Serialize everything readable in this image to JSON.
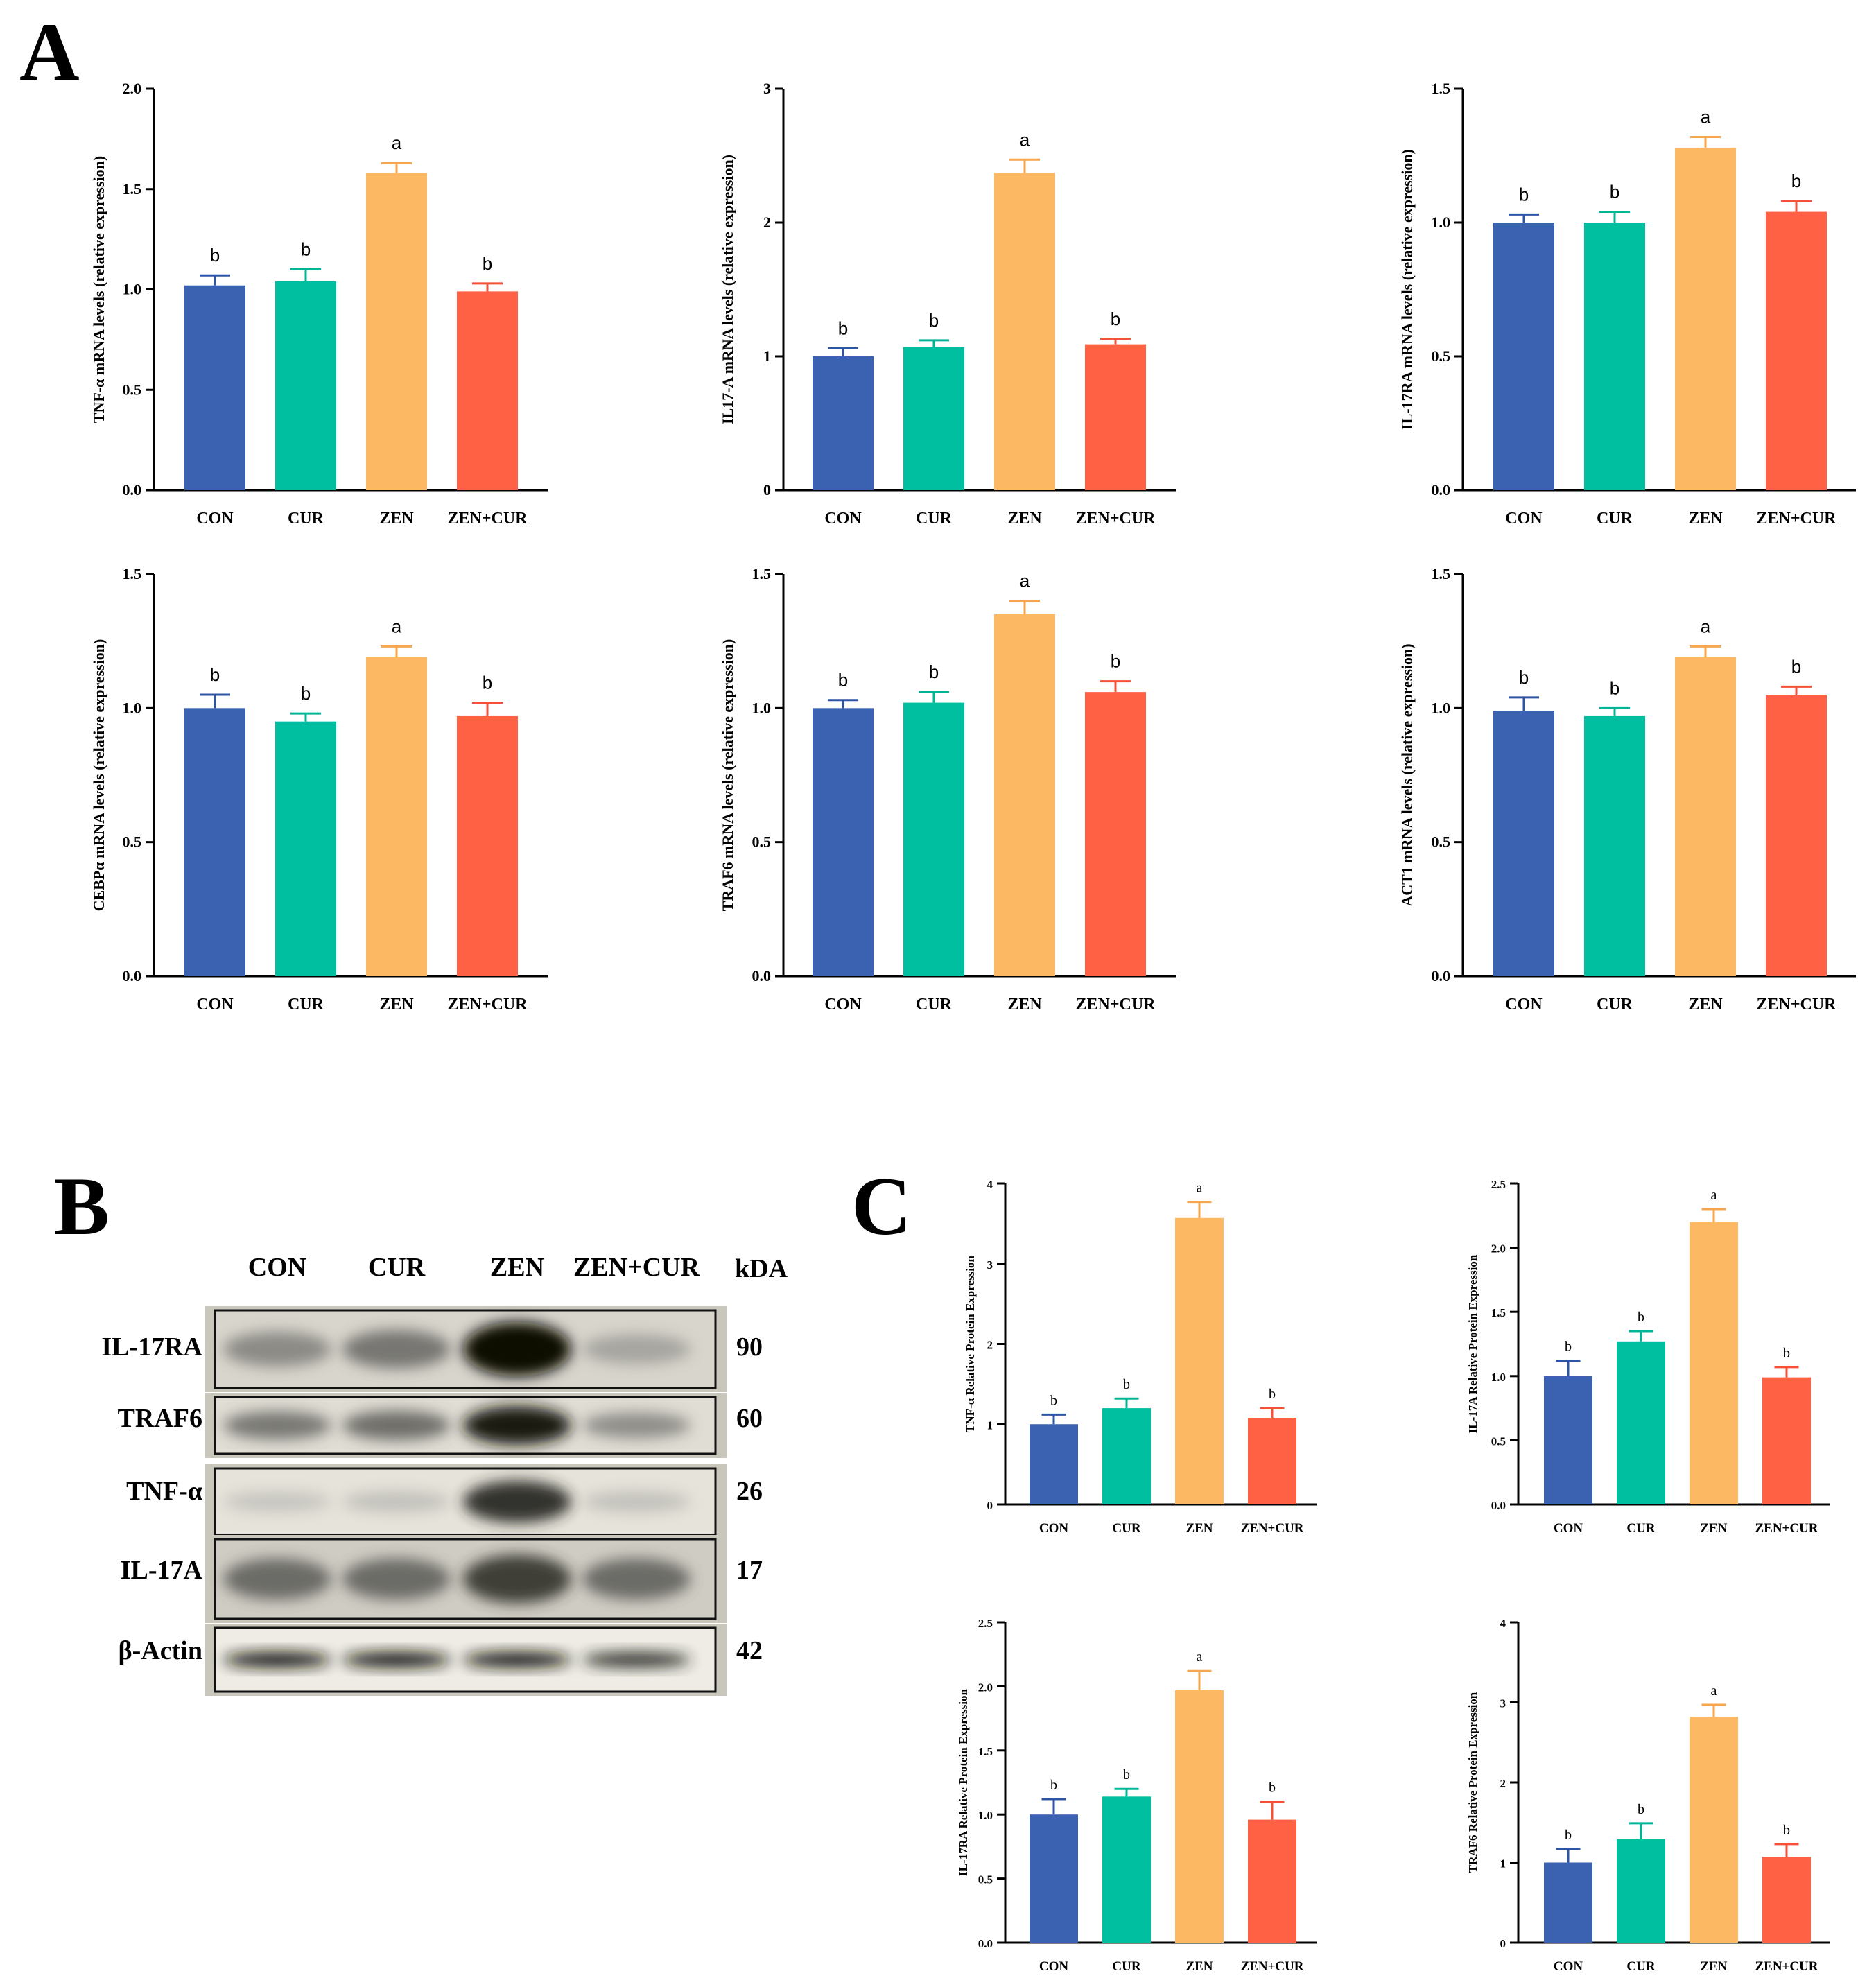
{
  "panels": {
    "A": "A",
    "B": "B",
    "C": "C"
  },
  "colors": {
    "CON": "#3a62b0",
    "CUR": "#00bfa0",
    "ZEN": "#fdb863",
    "ZEN+CUR": "#ff6144",
    "err_CON": "#2e55a5",
    "err_CUR": "#00b596",
    "err_ZEN": "#f5a64e",
    "err_ZEN+CUR": "#f5503a"
  },
  "chart_data": [
    {
      "id": "A1",
      "type": "bar",
      "title": "",
      "ylabel": "TNF-α mRNA levels (relative expression)",
      "categories": [
        "CON",
        "CUR",
        "ZEN",
        "ZEN+CUR"
      ],
      "values": [
        1.02,
        1.04,
        1.58,
        0.99
      ],
      "errors": [
        0.05,
        0.06,
        0.05,
        0.04
      ],
      "significance": [
        "b",
        "b",
        "a",
        "b"
      ],
      "ylim": [
        0,
        2.0
      ],
      "yticks": [
        "0.0",
        "0.5",
        "1.0",
        "1.5",
        "2.0"
      ]
    },
    {
      "id": "A2",
      "type": "bar",
      "title": "",
      "ylabel": "IL17-A  mRNA levels (relative expression)",
      "categories": [
        "CON",
        "CUR",
        "ZEN",
        "ZEN+CUR"
      ],
      "values": [
        1.0,
        1.07,
        2.37,
        1.09
      ],
      "errors": [
        0.06,
        0.05,
        0.1,
        0.04
      ],
      "significance": [
        "b",
        "b",
        "a",
        "b"
      ],
      "ylim": [
        0,
        3
      ],
      "yticks": [
        "0",
        "1",
        "2",
        "3"
      ]
    },
    {
      "id": "A3",
      "type": "bar",
      "title": "",
      "ylabel": "IL-17RA mRNA levels (relative expression)",
      "categories": [
        "CON",
        "CUR",
        "ZEN",
        "ZEN+CUR"
      ],
      "values": [
        1.0,
        1.0,
        1.28,
        1.04
      ],
      "errors": [
        0.03,
        0.04,
        0.04,
        0.04
      ],
      "significance": [
        "b",
        "b",
        "a",
        "b"
      ],
      "ylim": [
        0,
        1.5
      ],
      "yticks": [
        "0.0",
        "0.5",
        "1.0",
        "1.5"
      ]
    },
    {
      "id": "A4",
      "type": "bar",
      "title": "",
      "ylabel": "CEBPα mRNA levels (relative expression)",
      "categories": [
        "CON",
        "CUR",
        "ZEN",
        "ZEN+CUR"
      ],
      "values": [
        1.0,
        0.95,
        1.19,
        0.97
      ],
      "errors": [
        0.05,
        0.03,
        0.04,
        0.05
      ],
      "significance": [
        "b",
        "b",
        "a",
        "b"
      ],
      "ylim": [
        0,
        1.5
      ],
      "yticks": [
        "0.0",
        "0.5",
        "1.0",
        "1.5"
      ]
    },
    {
      "id": "A5",
      "type": "bar",
      "title": "",
      "ylabel": "TRAF6 mRNA levels (relative expression)",
      "categories": [
        "CON",
        "CUR",
        "ZEN",
        "ZEN+CUR"
      ],
      "values": [
        1.0,
        1.02,
        1.35,
        1.06
      ],
      "errors": [
        0.03,
        0.04,
        0.05,
        0.04
      ],
      "significance": [
        "b",
        "b",
        "a",
        "b"
      ],
      "ylim": [
        0,
        1.5
      ],
      "yticks": [
        "0.0",
        "0.5",
        "1.0",
        "1.5"
      ]
    },
    {
      "id": "A6",
      "type": "bar",
      "title": "",
      "ylabel": "ACT1 mRNA levels (relative expression)",
      "categories": [
        "CON",
        "CUR",
        "ZEN",
        "ZEN+CUR"
      ],
      "values": [
        0.99,
        0.97,
        1.19,
        1.05
      ],
      "errors": [
        0.05,
        0.03,
        0.04,
        0.03
      ],
      "significance": [
        "b",
        "b",
        "a",
        "b"
      ],
      "ylim": [
        0,
        1.5
      ],
      "yticks": [
        "0.0",
        "0.5",
        "1.0",
        "1.5"
      ]
    },
    {
      "id": "C1",
      "type": "bar",
      "title": "",
      "ylabel": "TNF-α Relative Protein Expression",
      "categories": [
        "CON",
        "CUR",
        "ZEN",
        "ZEN+CUR"
      ],
      "values": [
        1.0,
        1.2,
        3.57,
        1.08
      ],
      "errors": [
        0.12,
        0.12,
        0.2,
        0.12
      ],
      "significance": [
        "b",
        "b",
        "a",
        "b"
      ],
      "ylim": [
        0,
        4
      ],
      "yticks": [
        "0",
        "1",
        "2",
        "3",
        "4"
      ]
    },
    {
      "id": "C2",
      "type": "bar",
      "title": "",
      "ylabel": "IL-17A Relative Protein Expression",
      "categories": [
        "CON",
        "CUR",
        "ZEN",
        "ZEN+CUR"
      ],
      "values": [
        1.0,
        1.27,
        2.2,
        0.99
      ],
      "errors": [
        0.12,
        0.08,
        0.1,
        0.08
      ],
      "significance": [
        "b",
        "b",
        "a",
        "b"
      ],
      "ylim": [
        0,
        2.5
      ],
      "yticks": [
        "0.0",
        "0.5",
        "1.0",
        "1.5",
        "2.0",
        "2.5"
      ]
    },
    {
      "id": "C3",
      "type": "bar",
      "title": "",
      "ylabel": "IL-17RA Relative Protein Expression",
      "categories": [
        "CON",
        "CUR",
        "ZEN",
        "ZEN+CUR"
      ],
      "values": [
        1.0,
        1.14,
        1.97,
        0.96
      ],
      "errors": [
        0.12,
        0.06,
        0.15,
        0.14
      ],
      "significance": [
        "b",
        "b",
        "a",
        "b"
      ],
      "ylim": [
        0,
        2.5
      ],
      "yticks": [
        "0.0",
        "0.5",
        "1.0",
        "1.5",
        "2.0",
        "2.5"
      ]
    },
    {
      "id": "C4",
      "type": "bar",
      "title": "",
      "ylabel": "TRAF6 Relative Protein Expression",
      "categories": [
        "CON",
        "CUR",
        "ZEN",
        "ZEN+CUR"
      ],
      "values": [
        1.0,
        1.29,
        2.82,
        1.07
      ],
      "errors": [
        0.17,
        0.2,
        0.15,
        0.16
      ],
      "significance": [
        "b",
        "b",
        "a",
        "b"
      ],
      "ylim": [
        0,
        4
      ],
      "yticks": [
        "0",
        "1",
        "2",
        "3",
        "4"
      ]
    }
  ],
  "western_blot": {
    "lanes": [
      "CON",
      "CUR",
      "ZEN",
      "ZEN+CUR"
    ],
    "kda_header": "kDA",
    "rows": [
      {
        "label": "IL-17RA",
        "kda": "90",
        "intensity": [
          0.45,
          0.55,
          1.0,
          0.3
        ]
      },
      {
        "label": "TRAF6",
        "kda": "60",
        "intensity": [
          0.55,
          0.6,
          0.95,
          0.45
        ]
      },
      {
        "label": "TNF-α",
        "kda": "26",
        "intensity": [
          0.12,
          0.15,
          0.85,
          0.15
        ]
      },
      {
        "label": "IL-17A",
        "kda": "17",
        "intensity": [
          0.6,
          0.6,
          0.8,
          0.6
        ]
      },
      {
        "label": "β-Actin",
        "kda": "42",
        "intensity": [
          0.95,
          0.95,
          0.95,
          0.85
        ]
      }
    ]
  }
}
